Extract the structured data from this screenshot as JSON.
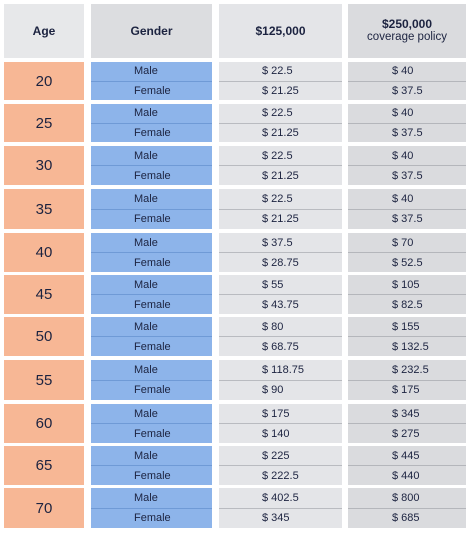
{
  "headers": {
    "age": "Age",
    "gender": "Gender",
    "col1": "$125,000",
    "col2": "$250,000",
    "col2_sub": "coverage policy"
  },
  "rows": [
    {
      "age": "20",
      "male": "Male",
      "female": "Female",
      "c1_male": "$ 22.5",
      "c1_female": "$ 21.25",
      "c2_male": "$ 40",
      "c2_female": "$ 37.5"
    },
    {
      "age": "25",
      "male": "Male",
      "female": "Female",
      "c1_male": "$ 22.5",
      "c1_female": "$ 21.25",
      "c2_male": "$ 40",
      "c2_female": "$ 37.5"
    },
    {
      "age": "30",
      "male": "Male",
      "female": "Female",
      "c1_male": "$ 22.5",
      "c1_female": "$ 21.25",
      "c2_male": "$ 40",
      "c2_female": "$ 37.5"
    },
    {
      "age": "35",
      "male": "Male",
      "female": "Female",
      "c1_male": "$ 22.5",
      "c1_female": "$ 21.25",
      "c2_male": "$ 40",
      "c2_female": "$ 37.5"
    },
    {
      "age": "40",
      "male": "Male",
      "female": "Female",
      "c1_male": "$ 37.5",
      "c1_female": "$ 28.75",
      "c2_male": "$ 70",
      "c2_female": "$ 52.5"
    },
    {
      "age": "45",
      "male": "Male",
      "female": "Female",
      "c1_male": "$ 55",
      "c1_female": "$ 43.75",
      "c2_male": "$ 105",
      "c2_female": "$ 82.5"
    },
    {
      "age": "50",
      "male": "Male",
      "female": "Female",
      "c1_male": "$ 80",
      "c1_female": "$ 68.75",
      "c2_male": "$ 155",
      "c2_female": "$ 132.5"
    },
    {
      "age": "55",
      "male": "Male",
      "female": "Female",
      "c1_male": "$ 118.75",
      "c1_female": "$ 90",
      "c2_male": "$ 232.5",
      "c2_female": "$ 175"
    },
    {
      "age": "60",
      "male": "Male",
      "female": "Female",
      "c1_male": "$ 175",
      "c1_female": "$ 140",
      "c2_male": "$ 345",
      "c2_female": "$ 275"
    },
    {
      "age": "65",
      "male": "Male",
      "female": "Female",
      "c1_male": "$ 225",
      "c1_female": "$ 222.5",
      "c2_male": "$ 445",
      "c2_female": "$ 440"
    },
    {
      "age": "70",
      "male": "Male",
      "female": "Female",
      "c1_male": "$ 402.5",
      "c1_female": "$ 345",
      "c2_male": "$ 800",
      "c2_female": "$ 685"
    }
  ],
  "colors": {
    "age_cell": "#f7b795",
    "gender_cell": "#8db4ea",
    "rate_cell_1": "#e4e5e8",
    "rate_cell_2": "#dadbde",
    "text": "#1c2340"
  }
}
